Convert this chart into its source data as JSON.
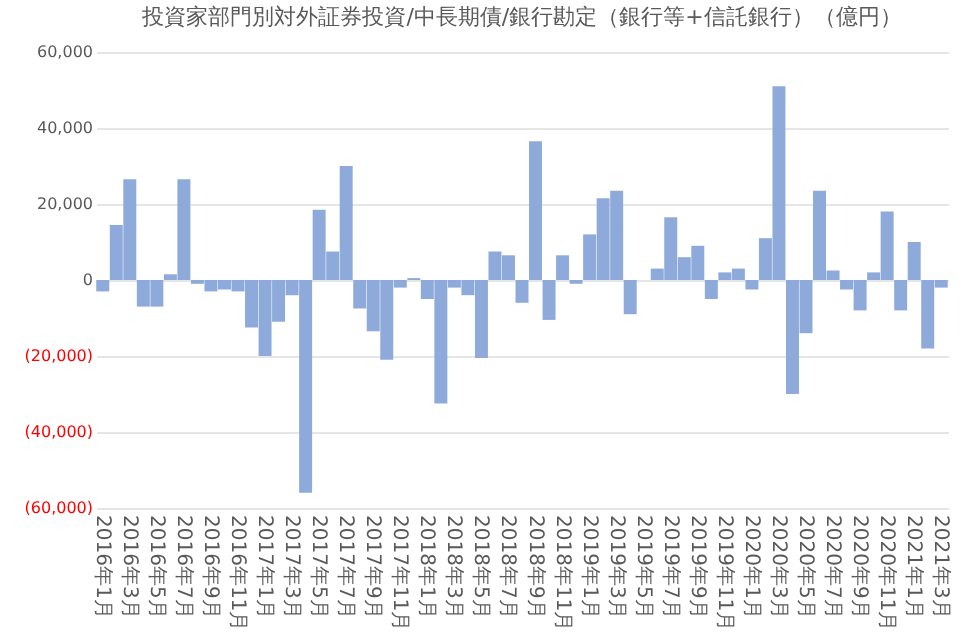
{
  "chart_data": {
    "type": "bar",
    "title": "投資家部門別対外証券投資/中長期債/銀行勘定（銀行等+信託銀行）（億円）",
    "categories": [
      "2016年1月",
      null,
      "2016年3月",
      null,
      "2016年5月",
      null,
      "2016年7月",
      null,
      "2016年9月",
      null,
      "2016年11月",
      null,
      "2017年1月",
      null,
      "2017年3月",
      null,
      "2017年5月",
      null,
      "2017年7月",
      null,
      "2017年9月",
      null,
      "2017年11月",
      null,
      "2018年1月",
      null,
      "2018年3月",
      null,
      "2018年5月",
      null,
      "2018年7月",
      null,
      "2018年9月",
      null,
      "2018年11月",
      null,
      "2019年1月",
      null,
      "2019年3月",
      null,
      "2019年5月",
      null,
      "2019年7月",
      null,
      "2019年9月",
      null,
      "2019年11月",
      null,
      "2020年1月",
      null,
      "2020年3月",
      null,
      "2020年5月",
      null,
      "2020年7月",
      null,
      "2020年9月",
      null,
      "2020年11月",
      null,
      "2021年1月",
      null,
      "2021年3月"
    ],
    "values": [
      -3000,
      14500,
      26500,
      -7000,
      -7000,
      1500,
      26500,
      -1000,
      -3000,
      -2500,
      -3000,
      -12500,
      -20000,
      -11000,
      -4000,
      -56000,
      18500,
      7500,
      30000,
      -7500,
      -13500,
      -21000,
      -2000,
      500,
      -5000,
      -32500,
      -2000,
      -4000,
      -20500,
      7500,
      6500,
      -6000,
      36500,
      -10500,
      6500,
      -1000,
      12000,
      21500,
      23500,
      -9000,
      0,
      3000,
      16500,
      6000,
      9000,
      -5000,
      2000,
      3000,
      -2500,
      11000,
      51000,
      -30000,
      -14000,
      23500,
      2500,
      -2500,
      -8000,
      2000,
      18000,
      -8000,
      10000,
      -18000,
      -2000
    ],
    "color": "#8eaadb",
    "ylim": [
      -60000,
      60000
    ],
    "yticks": [
      {
        "value": -60000,
        "label": "(60,000)"
      },
      {
        "value": -40000,
        "label": "(40,000)"
      },
      {
        "value": -20000,
        "label": "(20,000)"
      },
      0,
      {
        "value": 20000,
        "label": "20,000"
      },
      {
        "value": 40000,
        "label": "40,000"
      },
      {
        "value": 60000,
        "label": "60,000"
      }
    ],
    "grid": "y"
  }
}
